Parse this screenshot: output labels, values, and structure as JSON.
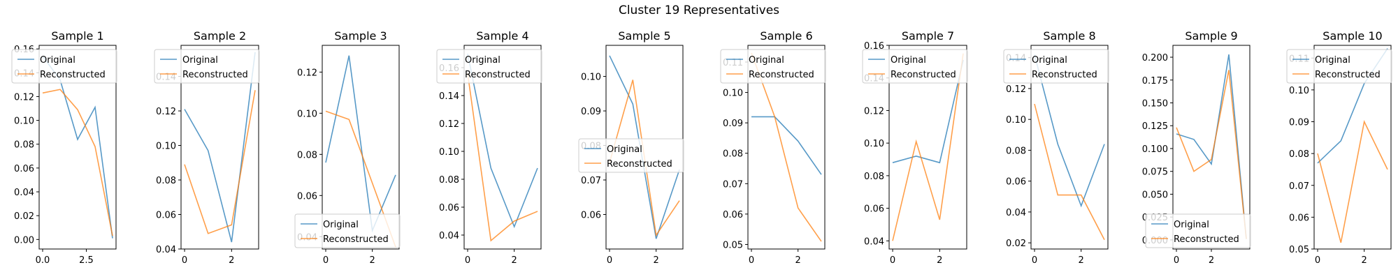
{
  "figure": {
    "title": "Cluster 19 Representatives"
  },
  "colors": {
    "original": "#1f77b4",
    "reconstructed": "#ff7f0e",
    "axis": "#000000"
  },
  "chart_data": [
    {
      "type": "line",
      "title": "Sample 1",
      "x": [
        0,
        1,
        2,
        3,
        4
      ],
      "xlim": [
        -0.2,
        4.2
      ],
      "xticks": [
        "0.0",
        "2.5"
      ],
      "xtick_values": [
        0,
        2.5
      ],
      "ylim": [
        -0.008,
        0.163
      ],
      "yticks": [
        "0.00",
        "0.02",
        "0.04",
        "0.06",
        "0.08",
        "0.10",
        "0.12",
        "0.14",
        "0.16"
      ],
      "ytick_values": [
        0,
        0.02,
        0.04,
        0.06,
        0.08,
        0.1,
        0.12,
        0.14,
        0.16
      ],
      "legend": {
        "location": "upper right"
      },
      "series": [
        {
          "name": "Original",
          "values": [
            0.154,
            0.134,
            0.084,
            0.111,
            0.001
          ]
        },
        {
          "name": "Reconstructed",
          "values": [
            0.123,
            0.126,
            0.109,
            0.078,
            0.003
          ]
        }
      ]
    },
    {
      "type": "line",
      "title": "Sample 2",
      "x": [
        0,
        1,
        2,
        3
      ],
      "xlim": [
        -0.15,
        3.15
      ],
      "xticks": [
        "0",
        "2"
      ],
      "xtick_values": [
        0,
        2
      ],
      "ylim": [
        0.04,
        0.158
      ],
      "yticks": [
        "0.04",
        "0.06",
        "0.08",
        "0.10",
        "0.12",
        "0.14"
      ],
      "ytick_values": [
        0.04,
        0.06,
        0.08,
        0.1,
        0.12,
        0.14
      ],
      "legend": {
        "location": "upper right"
      },
      "series": [
        {
          "name": "Original",
          "values": [
            0.121,
            0.097,
            0.044,
            0.154
          ]
        },
        {
          "name": "Reconstructed",
          "values": [
            0.089,
            0.049,
            0.054,
            0.132
          ]
        }
      ]
    },
    {
      "type": "line",
      "title": "Sample 3",
      "x": [
        0,
        1,
        2,
        3
      ],
      "xlim": [
        -0.15,
        3.15
      ],
      "xticks": [
        "0",
        "2"
      ],
      "xtick_values": [
        0,
        2
      ],
      "ylim": [
        0.034,
        0.133
      ],
      "yticks": [
        "0.04",
        "0.06",
        "0.08",
        "0.10",
        "0.12"
      ],
      "ytick_values": [
        0.04,
        0.06,
        0.08,
        0.1,
        0.12
      ],
      "legend": {
        "location": "lower right"
      },
      "series": [
        {
          "name": "Original",
          "values": [
            0.076,
            0.128,
            0.043,
            0.07
          ]
        },
        {
          "name": "Reconstructed",
          "values": [
            0.101,
            0.097,
            0.066,
            0.035
          ]
        }
      ]
    },
    {
      "type": "line",
      "title": "Sample 4",
      "x": [
        0,
        1,
        2,
        3
      ],
      "xlim": [
        -0.15,
        3.15
      ],
      "xticks": [
        "0",
        "2"
      ],
      "xtick_values": [
        0,
        2
      ],
      "ylim": [
        0.03,
        0.176
      ],
      "yticks": [
        "0.04",
        "0.06",
        "0.08",
        "0.10",
        "0.12",
        "0.14",
        "0.16"
      ],
      "ytick_values": [
        0.04,
        0.06,
        0.08,
        0.1,
        0.12,
        0.14,
        0.16
      ],
      "legend": {
        "location": "upper right"
      },
      "series": [
        {
          "name": "Original",
          "values": [
            0.17,
            0.088,
            0.046,
            0.088
          ]
        },
        {
          "name": "Reconstructed",
          "values": [
            0.156,
            0.036,
            0.05,
            0.057
          ]
        }
      ]
    },
    {
      "type": "line",
      "title": "Sample 5",
      "x": [
        0,
        1,
        2,
        3
      ],
      "xlim": [
        -0.15,
        3.15
      ],
      "xticks": [
        "0",
        "2"
      ],
      "xtick_values": [
        0,
        2
      ],
      "ylim": [
        0.05,
        0.109
      ],
      "yticks": [
        "0.06",
        "0.07",
        "0.08",
        "0.09",
        "0.10"
      ],
      "ytick_values": [
        0.06,
        0.07,
        0.08,
        0.09,
        0.1
      ],
      "legend": {
        "location": "center right"
      },
      "series": [
        {
          "name": "Original",
          "values": [
            0.106,
            0.092,
            0.053,
            0.073
          ]
        },
        {
          "name": "Reconstructed",
          "values": [
            0.075,
            0.099,
            0.054,
            0.064
          ]
        }
      ]
    },
    {
      "type": "line",
      "title": "Sample 6",
      "x": [
        0,
        1,
        2,
        3
      ],
      "xlim": [
        -0.15,
        3.15
      ],
      "xticks": [
        "0",
        "2"
      ],
      "xtick_values": [
        0,
        2
      ],
      "ylim": [
        0.0485,
        0.1155
      ],
      "yticks": [
        "0.05",
        "0.06",
        "0.07",
        "0.08",
        "0.09",
        "0.10",
        "0.11"
      ],
      "ytick_values": [
        0.05,
        0.06,
        0.07,
        0.08,
        0.09,
        0.1,
        0.11
      ],
      "legend": {
        "location": "upper right"
      },
      "series": [
        {
          "name": "Original",
          "values": [
            0.092,
            0.092,
            0.084,
            0.073
          ]
        },
        {
          "name": "Reconstructed",
          "values": [
            0.113,
            0.092,
            0.062,
            0.051
          ]
        }
      ]
    },
    {
      "type": "line",
      "title": "Sample 7",
      "x": [
        0,
        1,
        2,
        3
      ],
      "xlim": [
        -0.15,
        3.15
      ],
      "xticks": [
        "0",
        "2"
      ],
      "xtick_values": [
        0,
        2
      ],
      "ylim": [
        0.035,
        0.16
      ],
      "yticks": [
        "0.04",
        "0.06",
        "0.08",
        "0.10",
        "0.12",
        "0.14",
        "0.16"
      ],
      "ytick_values": [
        0.04,
        0.06,
        0.08,
        0.1,
        0.12,
        0.14,
        0.16
      ],
      "legend": {
        "location": "upper right"
      },
      "series": [
        {
          "name": "Original",
          "values": [
            0.088,
            0.092,
            0.088,
            0.151
          ]
        },
        {
          "name": "Reconstructed",
          "values": [
            0.04,
            0.101,
            0.053,
            0.155
          ]
        }
      ]
    },
    {
      "type": "line",
      "title": "Sample 8",
      "x": [
        0,
        1,
        2,
        3
      ],
      "xlim": [
        -0.15,
        3.15
      ],
      "xticks": [
        "0",
        "2"
      ],
      "xtick_values": [
        0,
        2
      ],
      "ylim": [
        0.016,
        0.148
      ],
      "yticks": [
        "0.02",
        "0.04",
        "0.06",
        "0.08",
        "0.10",
        "0.12",
        "0.14"
      ],
      "ytick_values": [
        0.02,
        0.04,
        0.06,
        0.08,
        0.1,
        0.12,
        0.14
      ],
      "legend": {
        "location": "upper right"
      },
      "series": [
        {
          "name": "Original",
          "values": [
            0.142,
            0.084,
            0.044,
            0.084
          ]
        },
        {
          "name": "Reconstructed",
          "values": [
            0.11,
            0.051,
            0.051,
            0.022
          ]
        }
      ]
    },
    {
      "type": "line",
      "title": "Sample 9",
      "x": [
        0,
        1,
        2,
        3,
        4
      ],
      "xlim": [
        -0.2,
        4.2
      ],
      "xticks": [
        "0",
        "2"
      ],
      "xtick_values": [
        0,
        2
      ],
      "ylim": [
        -0.01,
        0.213
      ],
      "yticks": [
        "0.000",
        "0.025",
        "0.050",
        "0.075",
        "0.100",
        "0.125",
        "0.150",
        "0.175",
        "0.200"
      ],
      "ytick_values": [
        0,
        0.025,
        0.05,
        0.075,
        0.1,
        0.125,
        0.15,
        0.175,
        0.2
      ],
      "legend": {
        "location": "lower right"
      },
      "series": [
        {
          "name": "Original",
          "values": [
            0.116,
            0.11,
            0.083,
            0.203,
            0.001
          ]
        },
        {
          "name": "Reconstructed",
          "values": [
            0.123,
            0.075,
            0.088,
            0.186,
            0.001
          ]
        }
      ]
    },
    {
      "type": "line",
      "title": "Sample 10",
      "x": [
        0,
        1,
        2,
        3
      ],
      "xlim": [
        -0.15,
        3.15
      ],
      "xticks": [
        "0",
        "2"
      ],
      "xtick_values": [
        0,
        2
      ],
      "ylim": [
        0.05,
        0.114
      ],
      "yticks": [
        "0.05",
        "0.06",
        "0.07",
        "0.08",
        "0.09",
        "0.10",
        "0.11"
      ],
      "ytick_values": [
        0.05,
        0.06,
        0.07,
        0.08,
        0.09,
        0.1,
        0.11
      ],
      "legend": {
        "location": "upper right"
      },
      "series": [
        {
          "name": "Original",
          "values": [
            0.077,
            0.084,
            0.102,
            0.113
          ]
        },
        {
          "name": "Reconstructed",
          "values": [
            0.08,
            0.052,
            0.09,
            0.075
          ]
        }
      ]
    }
  ]
}
